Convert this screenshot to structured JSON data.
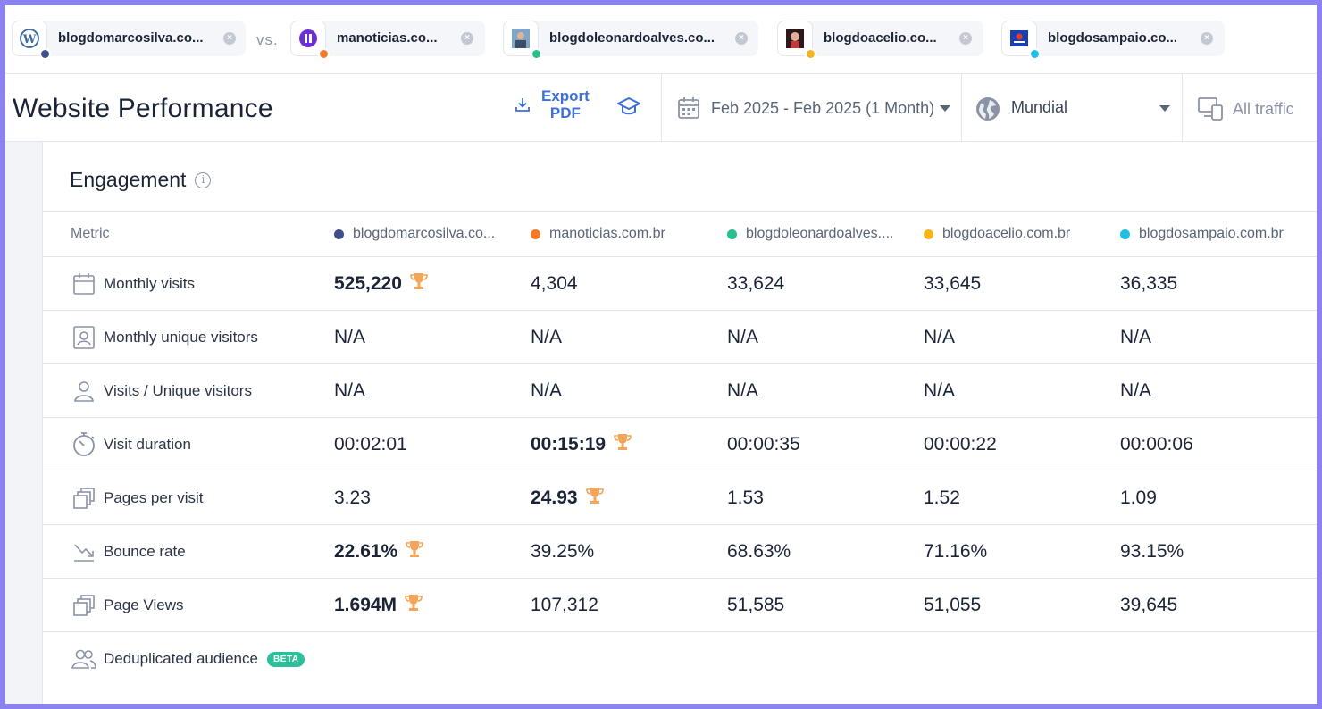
{
  "compare": {
    "vs_label": "vs.",
    "sites": [
      {
        "label": "blogdomarcosilva.co...",
        "color": "#3f4f8e"
      },
      {
        "label": "manoticias.co...",
        "color": "#f47a2a"
      },
      {
        "label": "blogdoleonardoalves.co...",
        "color": "#26c08d"
      },
      {
        "label": "blogdoacelio.co...",
        "color": "#f6b41a"
      },
      {
        "label": "blogdosampaio.co...",
        "color": "#1ec0e6"
      }
    ]
  },
  "header": {
    "title": "Website Performance",
    "export_line1": "Export",
    "export_line2": "PDF",
    "date_range": "Feb 2025 - Feb 2025 (1 Month)",
    "region": "Mundial",
    "traffic": "All traffic"
  },
  "engagement": {
    "title": "Engagement",
    "metric_header": "Metric",
    "columns": [
      {
        "label": "blogdomarcosilva.co...",
        "color": "#3f4f8e"
      },
      {
        "label": "manoticias.com.br",
        "color": "#f47a2a"
      },
      {
        "label": "blogdoleonardoalves....",
        "color": "#26c08d"
      },
      {
        "label": "blogdoacelio.com.br",
        "color": "#f6b41a"
      },
      {
        "label": "blogdosampaio.com.br",
        "color": "#1ec0e6"
      }
    ],
    "rows": [
      {
        "metric": "Monthly visits",
        "icon": "calendar-icon",
        "values": [
          "525,220",
          "4,304",
          "33,624",
          "33,645",
          "36,335"
        ],
        "winner": 0
      },
      {
        "metric": "Monthly unique visitors",
        "icon": "badge-icon",
        "values": [
          "N/A",
          "N/A",
          "N/A",
          "N/A",
          "N/A"
        ],
        "winner": -1
      },
      {
        "metric": "Visits / Unique visitors",
        "icon": "person-icon",
        "values": [
          "N/A",
          "N/A",
          "N/A",
          "N/A",
          "N/A"
        ],
        "winner": -1
      },
      {
        "metric": "Visit duration",
        "icon": "stopwatch-icon",
        "values": [
          "00:02:01",
          "00:15:19",
          "00:00:35",
          "00:00:22",
          "00:00:06"
        ],
        "winner": 1
      },
      {
        "metric": "Pages per visit",
        "icon": "pages-icon",
        "values": [
          "3.23",
          "24.93",
          "1.53",
          "1.52",
          "1.09"
        ],
        "winner": 1
      },
      {
        "metric": "Bounce rate",
        "icon": "trend-icon",
        "values": [
          "22.61%",
          "39.25%",
          "68.63%",
          "71.16%",
          "93.15%"
        ],
        "winner": 0
      },
      {
        "metric": "Page Views",
        "icon": "pages-icon",
        "values": [
          "1.694M",
          "107,312",
          "51,585",
          "51,055",
          "39,645"
        ],
        "winner": 0
      }
    ],
    "dedup_label": "Deduplicated audience",
    "beta_label": "BETA"
  }
}
